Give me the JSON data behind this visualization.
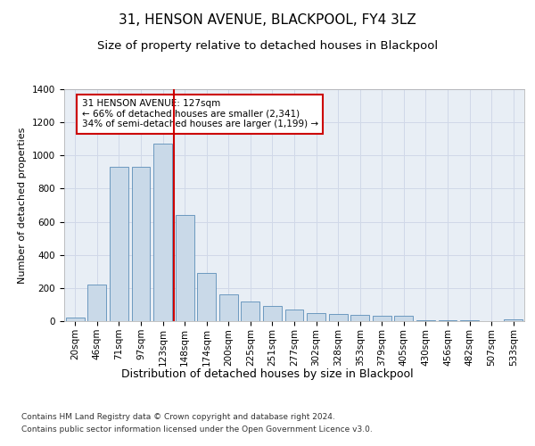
{
  "title1": "31, HENSON AVENUE, BLACKPOOL, FY4 3LZ",
  "title2": "Size of property relative to detached houses in Blackpool",
  "xlabel": "Distribution of detached houses by size in Blackpool",
  "ylabel": "Number of detached properties",
  "categories": [
    "20sqm",
    "46sqm",
    "71sqm",
    "97sqm",
    "123sqm",
    "148sqm",
    "174sqm",
    "200sqm",
    "225sqm",
    "251sqm",
    "277sqm",
    "302sqm",
    "328sqm",
    "353sqm",
    "379sqm",
    "405sqm",
    "430sqm",
    "456sqm",
    "482sqm",
    "507sqm",
    "533sqm"
  ],
  "values": [
    20,
    220,
    930,
    930,
    1070,
    640,
    290,
    160,
    120,
    90,
    70,
    50,
    45,
    40,
    30,
    30,
    5,
    5,
    5,
    0,
    10
  ],
  "bar_color": "#c9d9e8",
  "bar_edge_color": "#5b8db8",
  "vline_color": "#cc0000",
  "annotation_text": "31 HENSON AVENUE: 127sqm\n← 66% of detached houses are smaller (2,341)\n34% of semi-detached houses are larger (1,199) →",
  "annotation_box_color": "#cc0000",
  "ylim": [
    0,
    1400
  ],
  "yticks": [
    0,
    200,
    400,
    600,
    800,
    1000,
    1200,
    1400
  ],
  "grid_color": "#d0d8e8",
  "bg_color": "#e8eef5",
  "footer1": "Contains HM Land Registry data © Crown copyright and database right 2024.",
  "footer2": "Contains public sector information licensed under the Open Government Licence v3.0.",
  "title1_fontsize": 11,
  "title2_fontsize": 9.5,
  "xlabel_fontsize": 9,
  "ylabel_fontsize": 8,
  "tick_fontsize": 7.5,
  "footer_fontsize": 6.5,
  "annotation_fontsize": 7.5
}
